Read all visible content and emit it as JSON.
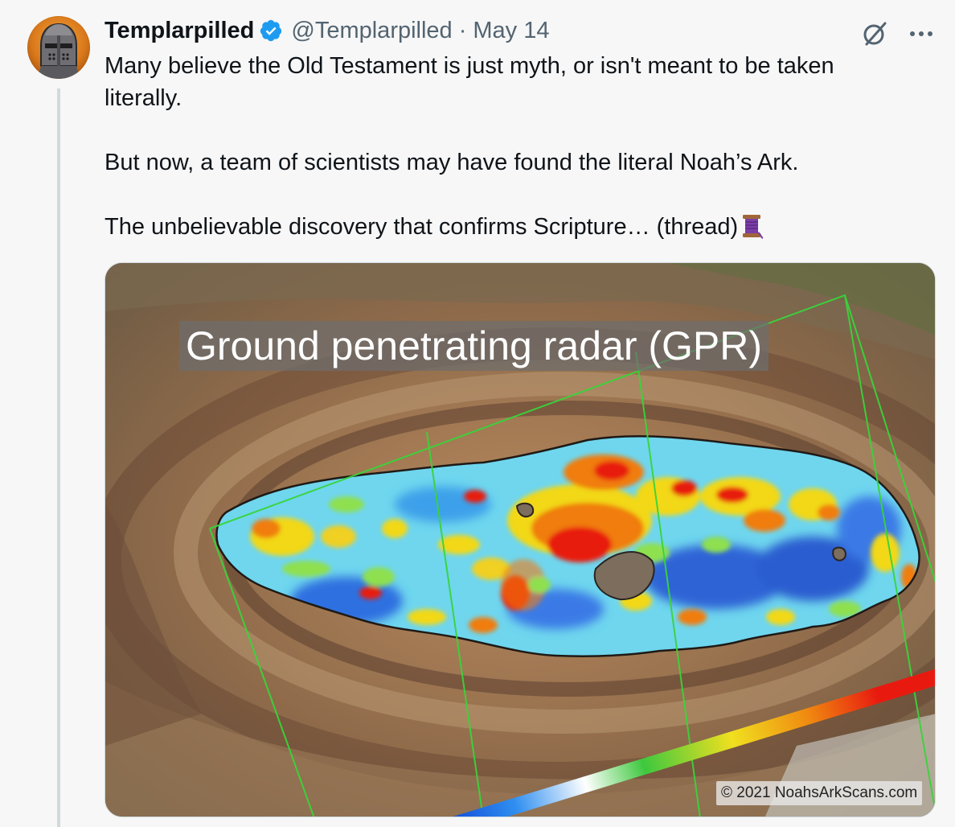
{
  "author": {
    "display_name": "Templarpilled",
    "handle": "@Templarpilled",
    "separator": "·",
    "date": "May 14"
  },
  "tweet": {
    "paragraphs": [
      "Many believe the Old Testament is just myth, or isn't meant to be taken literally.",
      "But now, a team of scientists may have found the literal Noah’s Ark.",
      "The unbelievable discovery that confirms Scripture… (thread)"
    ]
  },
  "media": {
    "overlay_title": "Ground penetrating radar (GPR)",
    "copyright": "© 2021 NoahsArkScans.com"
  },
  "icons": {
    "avatar": "knight-helmet-avatar",
    "verified": "verified-badge-icon",
    "grok": "grok-icon",
    "more": "more-icon",
    "thread": "spool-of-thread-emoji"
  },
  "colors": {
    "verified": "#1d9bf0",
    "secondary_text": "#536471",
    "thread_line": "#cfd9de",
    "gpr_grid": "#39d43a"
  }
}
